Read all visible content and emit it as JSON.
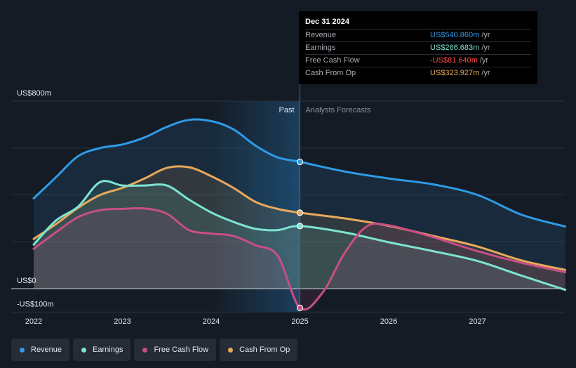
{
  "chart_data": {
    "type": "area",
    "x_range": [
      2021.9,
      2027.99
    ],
    "y_range": [
      -100,
      800
    ],
    "past_boundary": 2025.0,
    "past_label": "Past",
    "forecast_label": "Analysts Forecasts",
    "y_tick_labels": [
      {
        "value": 800,
        "label": "US$800m"
      },
      {
        "value": 0,
        "label": "US$0"
      },
      {
        "value": -100,
        "label": "-US$100m"
      }
    ],
    "x_tick_labels": [
      {
        "value": 2022,
        "label": "2022"
      },
      {
        "value": 2023,
        "label": "2023"
      },
      {
        "value": 2024,
        "label": "2024"
      },
      {
        "value": 2025,
        "label": "2025"
      },
      {
        "value": 2026,
        "label": "2026"
      },
      {
        "value": 2027,
        "label": "2027"
      }
    ],
    "series": [
      {
        "name": "Revenue",
        "color": "#2f9ae6",
        "points": [
          [
            2022.0,
            385
          ],
          [
            2022.25,
            475
          ],
          [
            2022.5,
            565
          ],
          [
            2022.75,
            600
          ],
          [
            2023.0,
            615
          ],
          [
            2023.25,
            645
          ],
          [
            2023.5,
            690
          ],
          [
            2023.75,
            720
          ],
          [
            2024.0,
            715
          ],
          [
            2024.25,
            680
          ],
          [
            2024.5,
            610
          ],
          [
            2024.75,
            560
          ],
          [
            2025.0,
            541
          ],
          [
            2025.5,
            500
          ],
          [
            2026.0,
            470
          ],
          [
            2026.5,
            445
          ],
          [
            2027.0,
            400
          ],
          [
            2027.5,
            315
          ],
          [
            2027.99,
            265
          ]
        ]
      },
      {
        "name": "Cash From Op",
        "color": "#e8a95b",
        "points": [
          [
            2022.0,
            212
          ],
          [
            2022.25,
            275
          ],
          [
            2022.5,
            345
          ],
          [
            2022.75,
            400
          ],
          [
            2023.0,
            430
          ],
          [
            2023.25,
            470
          ],
          [
            2023.5,
            515
          ],
          [
            2023.75,
            518
          ],
          [
            2024.0,
            480
          ],
          [
            2024.25,
            430
          ],
          [
            2024.5,
            370
          ],
          [
            2024.75,
            340
          ],
          [
            2025.0,
            324
          ],
          [
            2025.5,
            300
          ],
          [
            2026.0,
            268
          ],
          [
            2026.5,
            225
          ],
          [
            2027.0,
            180
          ],
          [
            2027.5,
            120
          ],
          [
            2027.99,
            80
          ]
        ]
      },
      {
        "name": "Earnings",
        "color": "#7de3d1",
        "points": [
          [
            2022.0,
            188
          ],
          [
            2022.25,
            290
          ],
          [
            2022.5,
            350
          ],
          [
            2022.75,
            455
          ],
          [
            2023.0,
            440
          ],
          [
            2023.25,
            440
          ],
          [
            2023.5,
            440
          ],
          [
            2023.75,
            380
          ],
          [
            2024.0,
            325
          ],
          [
            2024.25,
            285
          ],
          [
            2024.5,
            255
          ],
          [
            2024.75,
            250
          ],
          [
            2025.0,
            267
          ],
          [
            2025.5,
            240
          ],
          [
            2026.0,
            198
          ],
          [
            2026.5,
            160
          ],
          [
            2027.0,
            118
          ],
          [
            2027.5,
            55
          ],
          [
            2027.99,
            -5
          ]
        ]
      },
      {
        "name": "Free Cash Flow",
        "color": "#c84e87",
        "points": [
          [
            2022.0,
            170
          ],
          [
            2022.25,
            240
          ],
          [
            2022.5,
            305
          ],
          [
            2022.75,
            335
          ],
          [
            2023.0,
            340
          ],
          [
            2023.25,
            342
          ],
          [
            2023.5,
            320
          ],
          [
            2023.75,
            250
          ],
          [
            2024.0,
            235
          ],
          [
            2024.25,
            225
          ],
          [
            2024.5,
            185
          ],
          [
            2024.75,
            140
          ],
          [
            2025.0,
            -82
          ],
          [
            2025.25,
            -20
          ],
          [
            2025.5,
            150
          ],
          [
            2025.75,
            265
          ],
          [
            2026.0,
            270
          ],
          [
            2026.5,
            220
          ],
          [
            2027.0,
            160
          ],
          [
            2027.5,
            110
          ],
          [
            2027.99,
            70
          ]
        ]
      }
    ]
  },
  "tooltip": {
    "date": "Dec 31 2024",
    "rows": [
      {
        "label": "Revenue",
        "value": "US$540.860m",
        "unit": "/yr",
        "color": "#2f9ae6"
      },
      {
        "label": "Earnings",
        "value": "US$266.683m",
        "unit": "/yr",
        "color": "#7de3d1"
      },
      {
        "label": "Free Cash Flow",
        "value": "-US$81.640m",
        "unit": "/yr",
        "color": "#ff4a4a"
      },
      {
        "label": "Cash From Op",
        "value": "US$323.927m",
        "unit": "/yr",
        "color": "#e8a95b"
      }
    ]
  },
  "legend": [
    {
      "label": "Revenue",
      "color": "#2f9ae6"
    },
    {
      "label": "Earnings",
      "color": "#7de3d1"
    },
    {
      "label": "Free Cash Flow",
      "color": "#c84e87"
    },
    {
      "label": "Cash From Op",
      "color": "#e8a95b"
    }
  ]
}
